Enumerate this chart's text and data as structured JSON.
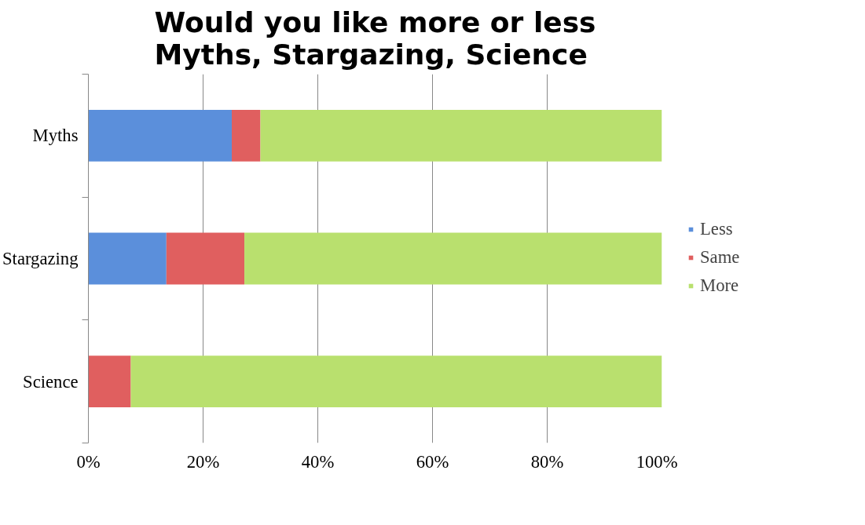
{
  "chart_data": {
    "type": "bar",
    "orientation": "horizontal",
    "stacked": true,
    "title": "Would you like more or less\nMyths, Stargazing, Science",
    "categories": [
      "Myths",
      "Stargazing",
      "Science"
    ],
    "series": [
      {
        "name": "Less",
        "color": "#5b8fdb",
        "values": [
          25,
          13.6,
          0
        ]
      },
      {
        "name": "Same",
        "color": "#e05f5f",
        "values": [
          5,
          13.6,
          7.4
        ]
      },
      {
        "name": "More",
        "color": "#b9e06e",
        "values": [
          70,
          72.8,
          92.6
        ]
      }
    ],
    "xlim": [
      0,
      100
    ],
    "xticks": [
      {
        "value": 0,
        "label": "0%"
      },
      {
        "value": 20,
        "label": "20%"
      },
      {
        "value": 40,
        "label": "40%"
      },
      {
        "value": 60,
        "label": "60%"
      },
      {
        "value": 80,
        "label": "80%"
      },
      {
        "value": 100,
        "label": "100%"
      }
    ],
    "grid": "x",
    "legend": "right"
  }
}
